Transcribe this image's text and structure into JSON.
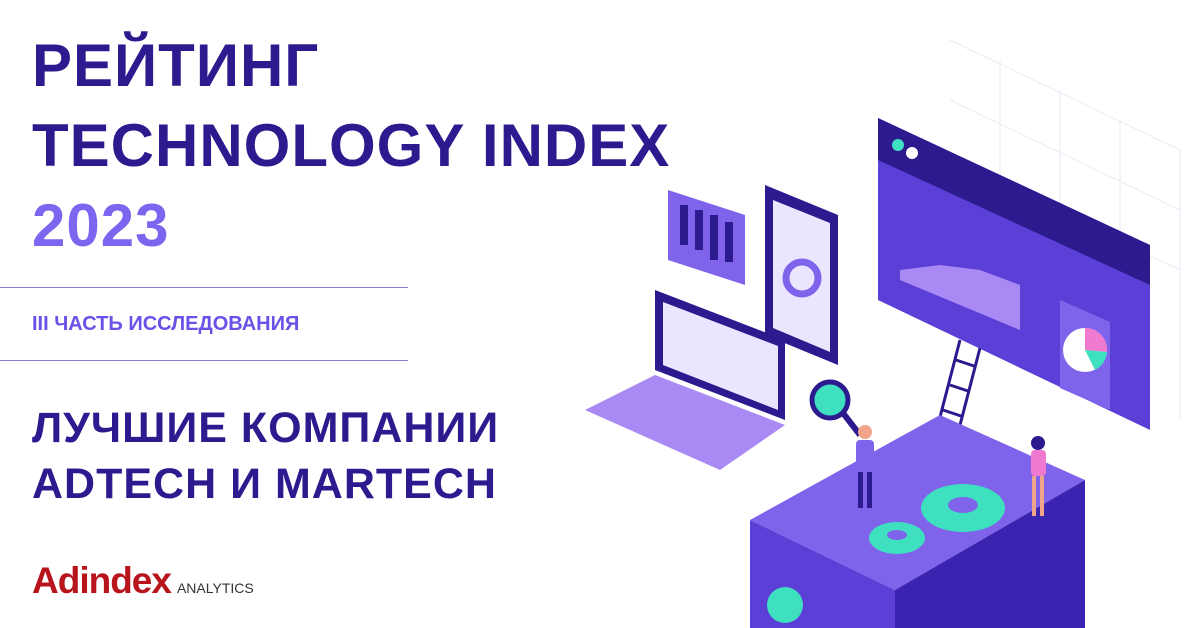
{
  "title": {
    "line1": "РЕЙТИНГ",
    "line2": "TECHNOLOGY INDEX",
    "year": "2023"
  },
  "part_label": "III ЧАСТЬ ИССЛЕДОВАНИЯ",
  "subtitle": {
    "line1": "ЛУЧШИЕ КОМПАНИИ",
    "line2": "ADTECH И MARTECH"
  },
  "logo": {
    "brand": "Adindex",
    "suffix": "ANALYTICS"
  },
  "colors": {
    "primary": "#2b1b8f",
    "accent": "#7b66f0",
    "brand_red": "#b8141b",
    "teal": "#3ee0c0"
  }
}
